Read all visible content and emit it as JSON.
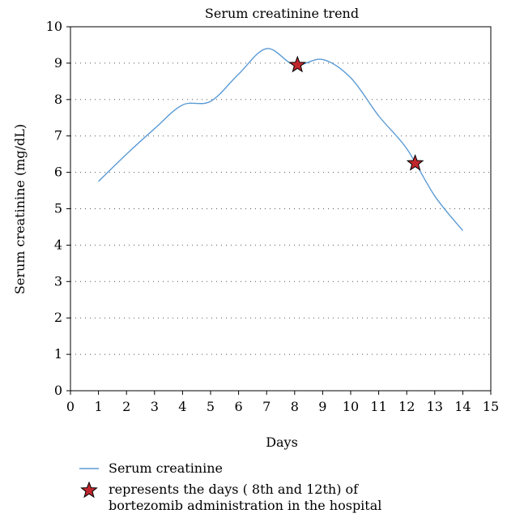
{
  "chart_data": {
    "type": "line",
    "title": "Serum creatinine trend",
    "xlabel": "Days",
    "ylabel": "Serum creatinine (mg/dL)",
    "xlim": [
      0,
      15
    ],
    "ylim": [
      0,
      10
    ],
    "x_ticks": [
      "0",
      "1",
      "2",
      "3",
      "4",
      "5",
      "6",
      "7",
      "8",
      "9",
      "10",
      "11",
      "12",
      "13",
      "14",
      "15"
    ],
    "y_ticks": [
      "0",
      "1",
      "2",
      "3",
      "4",
      "5",
      "6",
      "7",
      "8",
      "9",
      "10"
    ],
    "grid": "horizontal dotted",
    "series": [
      {
        "name": "Serum creatinine",
        "color": "#5b9bd5",
        "x": [
          1,
          2,
          3,
          4,
          5,
          6,
          7,
          8,
          9,
          10,
          11,
          12,
          13,
          14
        ],
        "y": [
          5.75,
          6.5,
          7.2,
          7.85,
          7.95,
          8.7,
          9.4,
          8.95,
          9.1,
          8.6,
          7.55,
          6.65,
          5.35,
          4.4
        ]
      }
    ],
    "markers": [
      {
        "x": 8.1,
        "y": 8.95,
        "color": "#c0272d"
      },
      {
        "x": 12.3,
        "y": 6.25,
        "color": "#c0272d"
      }
    ],
    "legend": {
      "placement": "bottom",
      "line_label": "Serum creatinine",
      "marker_label_line1": "represents the days ( 8th and 12th) of",
      "marker_label_line2": "bortezomib administration in the hospital"
    }
  }
}
